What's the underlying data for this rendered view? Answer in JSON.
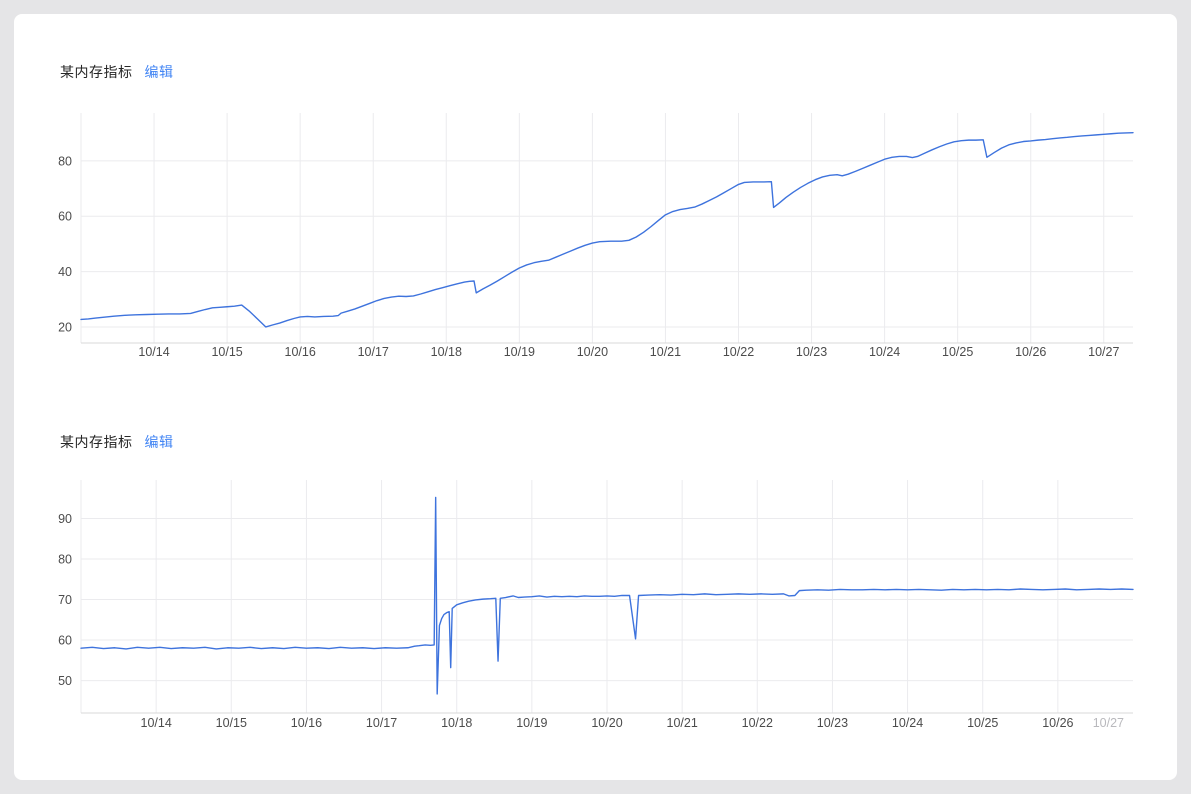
{
  "page": {
    "background": "#e5e5e7",
    "card_background": "#ffffff"
  },
  "charts": [
    {
      "title": "某内存指标",
      "edit_label": "编辑",
      "accent_color": "#4285f4",
      "chart_data": {
        "type": "line",
        "title": "某内存指标",
        "xlabel": "",
        "ylabel": "",
        "legend": false,
        "grid": true,
        "line_color": "#3e73dd",
        "grid_color": "#ebebee",
        "axis_color": "#d9d9d9",
        "tick_label_color": "#4c4c4c",
        "x_domain": [
          13,
          27.4
        ],
        "y_domain": [
          14.2,
          97.3
        ],
        "y_ticks": [
          20,
          40,
          60,
          80
        ],
        "x_ticks": [
          {
            "day": 13,
            "label": ""
          },
          {
            "day": 14,
            "label": "10/14"
          },
          {
            "day": 15,
            "label": "10/15"
          },
          {
            "day": 16,
            "label": "10/16"
          },
          {
            "day": 17,
            "label": "10/17"
          },
          {
            "day": 18,
            "label": "10/18"
          },
          {
            "day": 19,
            "label": "10/19"
          },
          {
            "day": 20,
            "label": "10/20"
          },
          {
            "day": 21,
            "label": "10/21"
          },
          {
            "day": 22,
            "label": "10/22"
          },
          {
            "day": 23,
            "label": "10/23"
          },
          {
            "day": 24,
            "label": "10/24"
          },
          {
            "day": 25,
            "label": "10/25"
          },
          {
            "day": 26,
            "label": "10/26"
          },
          {
            "day": 27,
            "label": "10/27"
          }
        ],
        "points": [
          [
            13.0,
            22.7
          ],
          [
            13.1,
            22.9
          ],
          [
            13.2,
            23.2
          ],
          [
            13.3,
            23.5
          ],
          [
            13.45,
            23.9
          ],
          [
            13.6,
            24.2
          ],
          [
            13.75,
            24.4
          ],
          [
            13.9,
            24.5
          ],
          [
            14.05,
            24.6
          ],
          [
            14.2,
            24.7
          ],
          [
            14.35,
            24.7
          ],
          [
            14.5,
            24.9
          ],
          [
            14.6,
            25.6
          ],
          [
            14.7,
            26.3
          ],
          [
            14.8,
            26.9
          ],
          [
            14.9,
            27.1
          ],
          [
            15.0,
            27.3
          ],
          [
            15.1,
            27.5
          ],
          [
            15.2,
            27.9
          ],
          [
            15.3,
            25.8
          ],
          [
            15.42,
            22.8
          ],
          [
            15.53,
            20.0
          ],
          [
            15.62,
            20.7
          ],
          [
            15.72,
            21.4
          ],
          [
            15.82,
            22.3
          ],
          [
            15.92,
            23.1
          ],
          [
            16.0,
            23.6
          ],
          [
            16.1,
            23.8
          ],
          [
            16.2,
            23.6
          ],
          [
            16.32,
            23.8
          ],
          [
            16.45,
            23.9
          ],
          [
            16.52,
            24.1
          ],
          [
            16.56,
            25.0
          ],
          [
            16.65,
            25.7
          ],
          [
            16.75,
            26.5
          ],
          [
            16.85,
            27.5
          ],
          [
            16.95,
            28.5
          ],
          [
            17.05,
            29.5
          ],
          [
            17.15,
            30.3
          ],
          [
            17.25,
            30.8
          ],
          [
            17.35,
            31.1
          ],
          [
            17.45,
            31.0
          ],
          [
            17.55,
            31.2
          ],
          [
            17.65,
            31.9
          ],
          [
            17.75,
            32.7
          ],
          [
            17.85,
            33.5
          ],
          [
            17.95,
            34.2
          ],
          [
            18.05,
            34.9
          ],
          [
            18.15,
            35.6
          ],
          [
            18.25,
            36.2
          ],
          [
            18.32,
            36.5
          ],
          [
            18.38,
            36.6
          ],
          [
            18.41,
            32.3
          ],
          [
            18.5,
            33.7
          ],
          [
            18.6,
            35.1
          ],
          [
            18.7,
            36.6
          ],
          [
            18.8,
            38.2
          ],
          [
            18.9,
            39.8
          ],
          [
            19.0,
            41.3
          ],
          [
            19.1,
            42.4
          ],
          [
            19.2,
            43.2
          ],
          [
            19.3,
            43.7
          ],
          [
            19.4,
            44.1
          ],
          [
            19.5,
            45.2
          ],
          [
            19.6,
            46.3
          ],
          [
            19.7,
            47.4
          ],
          [
            19.8,
            48.5
          ],
          [
            19.9,
            49.5
          ],
          [
            20.0,
            50.3
          ],
          [
            20.1,
            50.8
          ],
          [
            20.25,
            51.0
          ],
          [
            20.4,
            51.0
          ],
          [
            20.5,
            51.3
          ],
          [
            20.6,
            52.5
          ],
          [
            20.7,
            54.2
          ],
          [
            20.8,
            56.2
          ],
          [
            20.9,
            58.4
          ],
          [
            21.0,
            60.5
          ],
          [
            21.1,
            61.7
          ],
          [
            21.2,
            62.4
          ],
          [
            21.3,
            62.8
          ],
          [
            21.4,
            63.3
          ],
          [
            21.5,
            64.4
          ],
          [
            21.6,
            65.7
          ],
          [
            21.7,
            67.0
          ],
          [
            21.8,
            68.5
          ],
          [
            21.9,
            70.0
          ],
          [
            22.0,
            71.5
          ],
          [
            22.08,
            72.2
          ],
          [
            22.2,
            72.4
          ],
          [
            22.35,
            72.4
          ],
          [
            22.45,
            72.5
          ],
          [
            22.48,
            63.2
          ],
          [
            22.56,
            64.8
          ],
          [
            22.65,
            66.8
          ],
          [
            22.75,
            68.7
          ],
          [
            22.85,
            70.4
          ],
          [
            22.95,
            71.9
          ],
          [
            23.05,
            73.2
          ],
          [
            23.15,
            74.2
          ],
          [
            23.25,
            74.8
          ],
          [
            23.35,
            75.0
          ],
          [
            23.42,
            74.6
          ],
          [
            23.5,
            75.2
          ],
          [
            23.6,
            76.2
          ],
          [
            23.7,
            77.3
          ],
          [
            23.8,
            78.4
          ],
          [
            23.9,
            79.5
          ],
          [
            24.0,
            80.6
          ],
          [
            24.1,
            81.3
          ],
          [
            24.2,
            81.6
          ],
          [
            24.3,
            81.6
          ],
          [
            24.38,
            81.2
          ],
          [
            24.45,
            81.6
          ],
          [
            24.55,
            82.8
          ],
          [
            24.65,
            84.0
          ],
          [
            24.75,
            85.1
          ],
          [
            24.85,
            86.1
          ],
          [
            24.95,
            86.9
          ],
          [
            25.05,
            87.3
          ],
          [
            25.15,
            87.5
          ],
          [
            25.25,
            87.5
          ],
          [
            25.35,
            87.6
          ],
          [
            25.4,
            81.3
          ],
          [
            25.5,
            83.0
          ],
          [
            25.6,
            84.6
          ],
          [
            25.7,
            85.8
          ],
          [
            25.8,
            86.5
          ],
          [
            25.9,
            87.0
          ],
          [
            26.0,
            87.2
          ],
          [
            26.1,
            87.5
          ],
          [
            26.2,
            87.7
          ],
          [
            26.3,
            88.0
          ],
          [
            26.4,
            88.3
          ],
          [
            26.5,
            88.5
          ],
          [
            26.6,
            88.8
          ],
          [
            26.7,
            89.0
          ],
          [
            26.8,
            89.2
          ],
          [
            26.9,
            89.4
          ],
          [
            27.0,
            89.6
          ],
          [
            27.1,
            89.8
          ],
          [
            27.2,
            90.0
          ],
          [
            27.3,
            90.1
          ],
          [
            27.4,
            90.2
          ]
        ]
      }
    },
    {
      "title": "某内存指标",
      "edit_label": "编辑",
      "accent_color": "#4285f4",
      "chart_data": {
        "type": "line",
        "title": "某内存指标",
        "xlabel": "",
        "ylabel": "",
        "legend": false,
        "grid": true,
        "line_color": "#3e73dd",
        "grid_color": "#ebebee",
        "axis_color": "#d9d9d9",
        "tick_label_color": "#4c4c4c",
        "muted_tick_label_color": "#b9b9bd",
        "x_domain": [
          13,
          27
        ],
        "y_domain": [
          42,
          99.5
        ],
        "y_ticks": [
          50,
          60,
          70,
          80,
          90
        ],
        "x_ticks": [
          {
            "day": 13,
            "label": ""
          },
          {
            "day": 14,
            "label": "10/14"
          },
          {
            "day": 15,
            "label": "10/15"
          },
          {
            "day": 16,
            "label": "10/16"
          },
          {
            "day": 17,
            "label": "10/17"
          },
          {
            "day": 18,
            "label": "10/18"
          },
          {
            "day": 19,
            "label": "10/19"
          },
          {
            "day": 20,
            "label": "10/20"
          },
          {
            "day": 21,
            "label": "10/21"
          },
          {
            "day": 22,
            "label": "10/22"
          },
          {
            "day": 23,
            "label": "10/23"
          },
          {
            "day": 24,
            "label": "10/24"
          },
          {
            "day": 25,
            "label": "10/25"
          },
          {
            "day": 26,
            "label": "10/26"
          },
          {
            "day": 27,
            "label": "10/27",
            "muted": true,
            "align": "end",
            "no_grid": true
          }
        ],
        "points": [
          [
            13.0,
            58.0
          ],
          [
            13.15,
            58.2
          ],
          [
            13.3,
            57.9
          ],
          [
            13.45,
            58.1
          ],
          [
            13.6,
            57.8
          ],
          [
            13.75,
            58.2
          ],
          [
            13.9,
            58.0
          ],
          [
            14.05,
            58.2
          ],
          [
            14.2,
            57.9
          ],
          [
            14.35,
            58.1
          ],
          [
            14.5,
            58.0
          ],
          [
            14.65,
            58.2
          ],
          [
            14.8,
            57.8
          ],
          [
            14.95,
            58.1
          ],
          [
            15.1,
            58.0
          ],
          [
            15.25,
            58.2
          ],
          [
            15.4,
            57.9
          ],
          [
            15.55,
            58.1
          ],
          [
            15.7,
            57.9
          ],
          [
            15.85,
            58.2
          ],
          [
            16.0,
            58.0
          ],
          [
            16.15,
            58.1
          ],
          [
            16.3,
            57.9
          ],
          [
            16.45,
            58.2
          ],
          [
            16.6,
            58.0
          ],
          [
            16.75,
            58.1
          ],
          [
            16.9,
            57.9
          ],
          [
            17.05,
            58.1
          ],
          [
            17.2,
            58.0
          ],
          [
            17.35,
            58.1
          ],
          [
            17.44,
            58.5
          ],
          [
            17.5,
            58.6
          ],
          [
            17.58,
            58.8
          ],
          [
            17.65,
            58.7
          ],
          [
            17.7,
            58.8
          ],
          [
            17.72,
            95.2
          ],
          [
            17.74,
            46.7
          ],
          [
            17.77,
            63.6
          ],
          [
            17.8,
            65.3
          ],
          [
            17.83,
            66.3
          ],
          [
            17.87,
            66.8
          ],
          [
            17.9,
            67.0
          ],
          [
            17.92,
            53.2
          ],
          [
            17.94,
            67.8
          ],
          [
            18.0,
            68.7
          ],
          [
            18.08,
            69.2
          ],
          [
            18.16,
            69.6
          ],
          [
            18.25,
            69.9
          ],
          [
            18.35,
            70.1
          ],
          [
            18.45,
            70.2
          ],
          [
            18.52,
            70.3
          ],
          [
            18.55,
            54.8
          ],
          [
            18.58,
            70.3
          ],
          [
            18.65,
            70.5
          ],
          [
            18.75,
            70.9
          ],
          [
            18.82,
            70.5
          ],
          [
            18.9,
            70.6
          ],
          [
            19.0,
            70.7
          ],
          [
            19.1,
            70.9
          ],
          [
            19.2,
            70.6
          ],
          [
            19.3,
            70.8
          ],
          [
            19.4,
            70.7
          ],
          [
            19.5,
            70.8
          ],
          [
            19.6,
            70.7
          ],
          [
            19.7,
            70.9
          ],
          [
            19.8,
            70.8
          ],
          [
            19.9,
            70.8
          ],
          [
            20.0,
            70.9
          ],
          [
            20.1,
            70.8
          ],
          [
            20.2,
            71.0
          ],
          [
            20.3,
            71.0
          ],
          [
            20.38,
            60.3
          ],
          [
            20.42,
            71.0
          ],
          [
            20.55,
            71.1
          ],
          [
            20.7,
            71.2
          ],
          [
            20.85,
            71.1
          ],
          [
            21.0,
            71.3
          ],
          [
            21.15,
            71.2
          ],
          [
            21.3,
            71.4
          ],
          [
            21.45,
            71.2
          ],
          [
            21.6,
            71.3
          ],
          [
            21.75,
            71.4
          ],
          [
            21.9,
            71.3
          ],
          [
            22.05,
            71.4
          ],
          [
            22.2,
            71.3
          ],
          [
            22.35,
            71.4
          ],
          [
            22.42,
            70.9
          ],
          [
            22.5,
            71.0
          ],
          [
            22.56,
            72.2
          ],
          [
            22.65,
            72.3
          ],
          [
            22.8,
            72.4
          ],
          [
            22.95,
            72.3
          ],
          [
            23.1,
            72.5
          ],
          [
            23.25,
            72.4
          ],
          [
            23.4,
            72.4
          ],
          [
            23.55,
            72.5
          ],
          [
            23.7,
            72.4
          ],
          [
            23.85,
            72.5
          ],
          [
            24.0,
            72.4
          ],
          [
            24.15,
            72.5
          ],
          [
            24.3,
            72.4
          ],
          [
            24.45,
            72.3
          ],
          [
            24.6,
            72.5
          ],
          [
            24.75,
            72.4
          ],
          [
            24.9,
            72.5
          ],
          [
            25.05,
            72.4
          ],
          [
            25.2,
            72.5
          ],
          [
            25.35,
            72.4
          ],
          [
            25.5,
            72.6
          ],
          [
            25.65,
            72.5
          ],
          [
            25.8,
            72.4
          ],
          [
            25.95,
            72.5
          ],
          [
            26.1,
            72.6
          ],
          [
            26.25,
            72.4
          ],
          [
            26.4,
            72.5
          ],
          [
            26.55,
            72.6
          ],
          [
            26.7,
            72.5
          ],
          [
            26.85,
            72.6
          ],
          [
            27.0,
            72.5
          ]
        ]
      }
    }
  ]
}
